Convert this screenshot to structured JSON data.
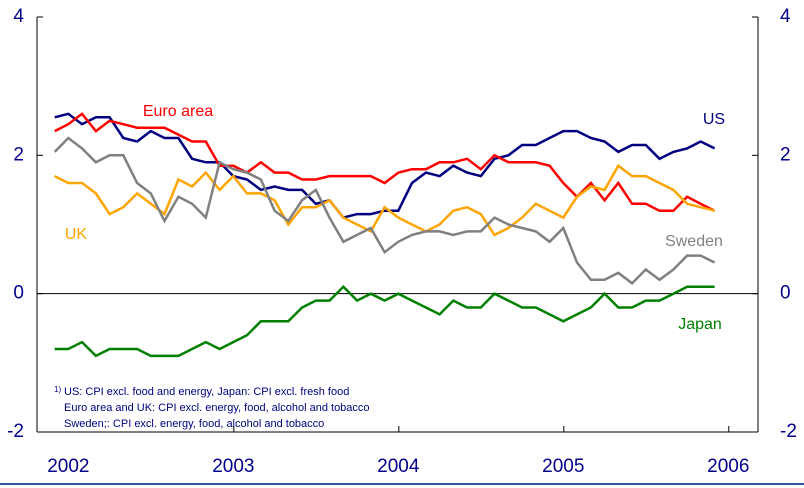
{
  "chart_data": {
    "type": "line",
    "x": [
      2001.917,
      2002,
      2002.083,
      2002.167,
      2002.25,
      2002.333,
      2002.417,
      2002.5,
      2002.583,
      2002.667,
      2002.75,
      2002.833,
      2002.917,
      2003,
      2003.083,
      2003.167,
      2003.25,
      2003.333,
      2003.417,
      2003.5,
      2003.583,
      2003.667,
      2003.75,
      2003.833,
      2003.917,
      2004,
      2004.083,
      2004.167,
      2004.25,
      2004.333,
      2004.417,
      2004.5,
      2004.583,
      2004.667,
      2004.75,
      2004.833,
      2004.917,
      2005,
      2005.083,
      2005.167,
      2005.25,
      2005.333,
      2005.417,
      2005.5,
      2005.583,
      2005.667,
      2005.75,
      2005.833,
      2005.917
    ],
    "series": [
      {
        "name": "US",
        "color": "#000080",
        "values": [
          2.55,
          2.6,
          2.45,
          2.55,
          2.55,
          2.25,
          2.2,
          2.35,
          2.25,
          2.25,
          1.95,
          1.9,
          1.9,
          1.7,
          1.65,
          1.5,
          1.55,
          1.5,
          1.5,
          1.3,
          1.35,
          1.1,
          1.15,
          1.15,
          1.2,
          1.2,
          1.6,
          1.75,
          1.7,
          1.85,
          1.75,
          1.7,
          1.95,
          2.0,
          2.15,
          2.15,
          2.25,
          2.35,
          2.35,
          2.25,
          2.2,
          2.05,
          2.15,
          2.15,
          1.95,
          2.05,
          2.1,
          2.2,
          2.1
        ]
      },
      {
        "name": "Euro area",
        "color": "#ff0000",
        "values": [
          2.35,
          2.45,
          2.6,
          2.35,
          2.5,
          2.45,
          2.4,
          2.4,
          2.4,
          2.3,
          2.2,
          2.2,
          1.85,
          1.85,
          1.75,
          1.9,
          1.75,
          1.75,
          1.65,
          1.65,
          1.7,
          1.7,
          1.7,
          1.7,
          1.6,
          1.75,
          1.8,
          1.8,
          1.9,
          1.9,
          1.95,
          1.8,
          2.0,
          1.9,
          1.9,
          1.9,
          1.85,
          1.6,
          1.4,
          1.6,
          1.35,
          1.6,
          1.3,
          1.3,
          1.2,
          1.2,
          1.4,
          1.3,
          1.2
        ]
      },
      {
        "name": "UK",
        "color": "#ffa500",
        "values": [
          1.7,
          1.6,
          1.6,
          1.45,
          1.15,
          1.25,
          1.45,
          1.3,
          1.15,
          1.65,
          1.55,
          1.75,
          1.5,
          1.7,
          1.45,
          1.45,
          1.35,
          1.0,
          1.25,
          1.25,
          1.35,
          1.1,
          1.0,
          0.9,
          1.25,
          1.1,
          1.0,
          0.9,
          1.0,
          1.2,
          1.25,
          1.15,
          0.85,
          0.95,
          1.1,
          1.3,
          1.2,
          1.1,
          1.4,
          1.55,
          1.5,
          1.85,
          1.7,
          1.7,
          1.6,
          1.5,
          1.3,
          1.25,
          1.2
        ]
      },
      {
        "name": "Sweden",
        "color": "#808080",
        "values": [
          2.05,
          2.25,
          2.1,
          1.9,
          2.0,
          2.0,
          1.6,
          1.45,
          1.05,
          1.4,
          1.3,
          1.1,
          1.9,
          1.8,
          1.75,
          1.65,
          1.2,
          1.05,
          1.35,
          1.5,
          1.1,
          0.75,
          0.85,
          0.95,
          0.6,
          0.75,
          0.85,
          0.9,
          0.9,
          0.85,
          0.9,
          0.9,
          1.1,
          1.0,
          0.95,
          0.9,
          0.75,
          0.95,
          0.45,
          0.2,
          0.2,
          0.3,
          0.15,
          0.35,
          0.2,
          0.35,
          0.55,
          0.55,
          0.45
        ]
      },
      {
        "name": "Japan",
        "color": "#008000",
        "values": [
          -0.8,
          -0.8,
          -0.7,
          -0.9,
          -0.8,
          -0.8,
          -0.8,
          -0.9,
          -0.9,
          -0.9,
          -0.8,
          -0.7,
          -0.8,
          -0.7,
          -0.6,
          -0.4,
          -0.4,
          -0.4,
          -0.2,
          -0.1,
          -0.1,
          0.1,
          -0.1,
          0.0,
          -0.1,
          0.0,
          -0.1,
          -0.2,
          -0.3,
          -0.1,
          -0.2,
          -0.2,
          0.0,
          -0.1,
          -0.2,
          -0.2,
          -0.3,
          -0.4,
          -0.3,
          -0.2,
          0.0,
          -0.2,
          -0.2,
          -0.1,
          -0.1,
          0.0,
          0.1,
          0.1,
          0.1
        ]
      }
    ],
    "xlim": [
      2001.81,
      2006.18
    ],
    "xticks": [
      2002,
      2003,
      2004,
      2005,
      2006
    ],
    "ylim": [
      -2,
      4
    ],
    "yticks": [
      -2,
      0,
      2,
      4
    ],
    "y2lim": [
      -2,
      4
    ],
    "y2ticks": [
      -2,
      0,
      2,
      4
    ],
    "footnote_marker": "1)",
    "footnote": [
      "US: CPI excl. food and energy, Japan: CPI excl. fresh food",
      "Euro area and UK: CPI excl. energy, food, alcohol and tobacco",
      "Sweden;: CPI excl. energy, food, alcohol and tobacco"
    ]
  }
}
